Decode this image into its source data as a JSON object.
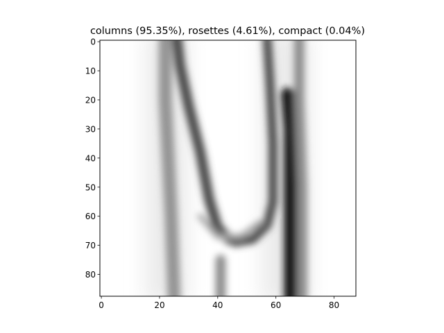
{
  "chart_data": {
    "type": "heatmap",
    "title": "columns (95.35%), rosettes (4.61%), compact (0.04%)",
    "colormap": "gray_r",
    "image_size": [
      88,
      88
    ],
    "xlim": [
      -0.5,
      87.5
    ],
    "ylim": [
      87.5,
      -0.5
    ],
    "x_ticks": [
      0,
      20,
      40,
      60,
      80
    ],
    "y_ticks": [
      0,
      10,
      20,
      30,
      40,
      50,
      60,
      70,
      80
    ],
    "strokes": [
      {
        "points": [
          [
            26,
            -1
          ],
          [
            27,
            8
          ],
          [
            30,
            22
          ],
          [
            34,
            38
          ],
          [
            37,
            54
          ],
          [
            40,
            64
          ],
          [
            44,
            68
          ]
        ],
        "width": 3.5,
        "darkness": 0.72
      },
      {
        "points": [
          [
            22,
            -1
          ],
          [
            22,
            20
          ],
          [
            23,
            40
          ],
          [
            24,
            60
          ],
          [
            25,
            88
          ]
        ],
        "width": 4.5,
        "darkness": 0.42
      },
      {
        "points": [
          [
            57,
            -1
          ],
          [
            58,
            15
          ],
          [
            59,
            35
          ],
          [
            59,
            55
          ],
          [
            57,
            63
          ],
          [
            52,
            68
          ],
          [
            46,
            69
          ]
        ],
        "width": 3.0,
        "darkness": 0.72
      },
      {
        "points": [
          [
            64,
            18
          ],
          [
            65,
            30
          ],
          [
            65,
            50
          ],
          [
            65,
            70
          ],
          [
            65,
            88
          ]
        ],
        "width": 4.5,
        "darkness": 0.9
      },
      {
        "points": [
          [
            68,
            -1
          ],
          [
            68,
            20
          ],
          [
            69,
            50
          ],
          [
            69,
            88
          ]
        ],
        "width": 3.5,
        "darkness": 0.45
      },
      {
        "points": [
          [
            41,
            75
          ],
          [
            41,
            88
          ]
        ],
        "width": 3.5,
        "darkness": 0.45
      },
      {
        "points": [
          [
            34,
            60
          ],
          [
            40,
            67
          ],
          [
            48,
            67
          ],
          [
            55,
            62
          ]
        ],
        "width": 2.0,
        "darkness": 0.35
      }
    ],
    "haze_columns": [
      [
        15,
        30,
        0.08
      ],
      [
        55,
        72,
        0.08
      ]
    ]
  }
}
